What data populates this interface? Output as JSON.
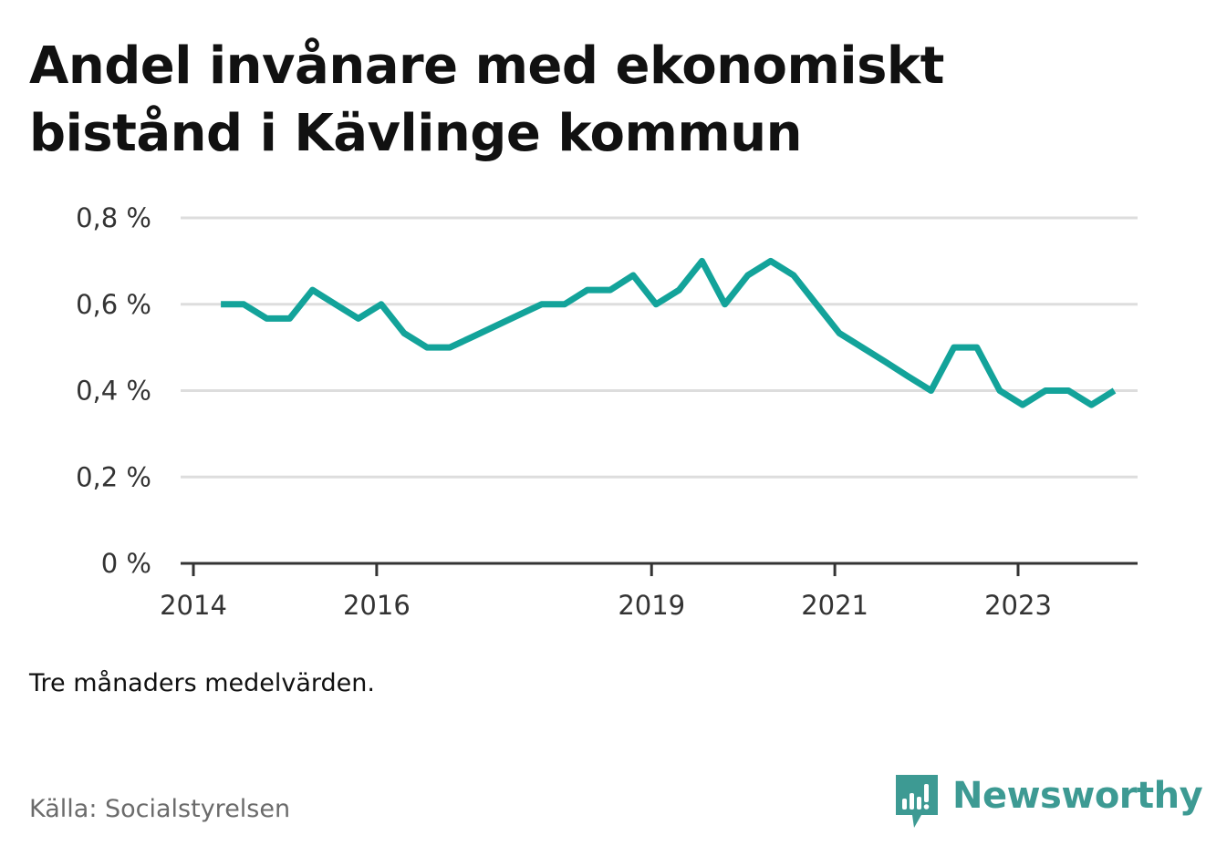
{
  "title": "Andel invånare med ekonomiskt bistånd i Kävlinge kommun",
  "note": "Tre månaders medelvärden.",
  "source": "Källa: Socialstyrelsen",
  "brand": {
    "name": "Newsworthy",
    "icon": "newsworthy-bar-chart-icon"
  },
  "colors": {
    "line": "#13a39a",
    "grid": "#dddddd",
    "axis": "#333333"
  },
  "chart_data": {
    "type": "line",
    "title": "Andel invånare med ekonomiskt bistånd i Kävlinge kommun",
    "xlabel": "",
    "ylabel": "",
    "ylim": [
      0,
      0.8
    ],
    "xlim": [
      2013.75,
      2024.15
    ],
    "grid": true,
    "y_ticks": [
      {
        "value": 0,
        "label": "0 %"
      },
      {
        "value": 0.2,
        "label": "0,2 %"
      },
      {
        "value": 0.4,
        "label": "0,4 %"
      },
      {
        "value": 0.6,
        "label": "0,6 %"
      },
      {
        "value": 0.8,
        "label": "0,8 %"
      }
    ],
    "x_ticks": [
      {
        "value": 2014,
        "label": "2014"
      },
      {
        "value": 2016,
        "label": "2016"
      },
      {
        "value": 2019,
        "label": "2019"
      },
      {
        "value": 2021,
        "label": "2021"
      },
      {
        "value": 2023,
        "label": "2023"
      }
    ],
    "series": [
      {
        "values": [
          [
            2014.3,
            0.6
          ],
          [
            2014.55,
            0.6
          ],
          [
            2014.8,
            0.567
          ],
          [
            2015.05,
            0.567
          ],
          [
            2015.3,
            0.633
          ],
          [
            2015.55,
            0.6
          ],
          [
            2015.8,
            0.567
          ],
          [
            2016.05,
            0.6
          ],
          [
            2016.3,
            0.533
          ],
          [
            2016.55,
            0.5
          ],
          [
            2016.8,
            0.5
          ],
          [
            2017.05,
            0.525
          ],
          [
            2017.3,
            0.55
          ],
          [
            2017.55,
            0.575
          ],
          [
            2017.8,
            0.6
          ],
          [
            2018.05,
            0.6
          ],
          [
            2018.3,
            0.633
          ],
          [
            2018.55,
            0.633
          ],
          [
            2018.8,
            0.667
          ],
          [
            2019.05,
            0.6
          ],
          [
            2019.3,
            0.633
          ],
          [
            2019.55,
            0.7
          ],
          [
            2019.8,
            0.6
          ],
          [
            2020.05,
            0.667
          ],
          [
            2020.3,
            0.7
          ],
          [
            2020.55,
            0.667
          ],
          [
            2020.8,
            0.6
          ],
          [
            2021.05,
            0.533
          ],
          [
            2021.3,
            0.5
          ],
          [
            2021.55,
            0.467
          ],
          [
            2021.8,
            0.433
          ],
          [
            2022.05,
            0.4
          ],
          [
            2022.3,
            0.5
          ],
          [
            2022.55,
            0.5
          ],
          [
            2022.8,
            0.4
          ],
          [
            2023.05,
            0.367
          ],
          [
            2023.3,
            0.4
          ],
          [
            2023.55,
            0.4
          ],
          [
            2023.8,
            0.367
          ],
          [
            2024.05,
            0.4
          ]
        ]
      }
    ]
  }
}
